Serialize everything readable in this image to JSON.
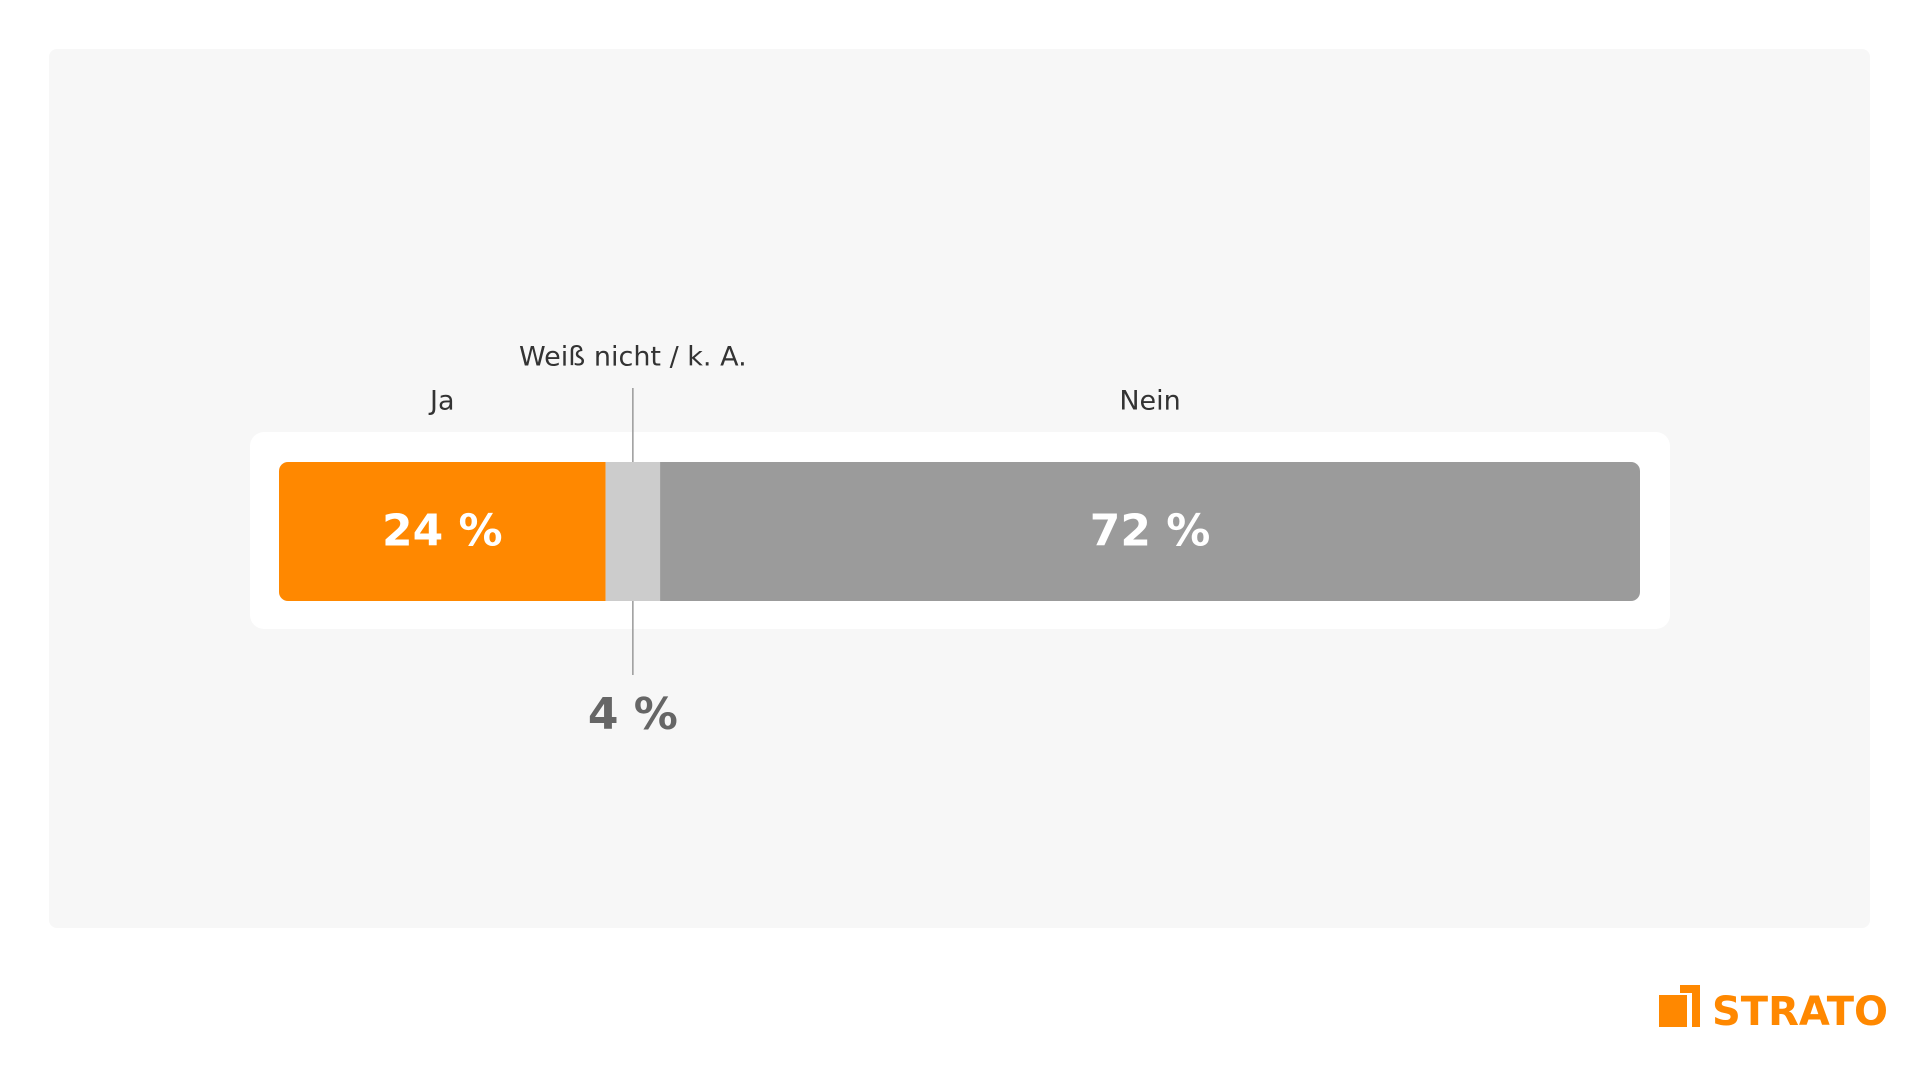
{
  "chart_data": {
    "type": "stacked-bar",
    "series": [
      {
        "name": "Ja",
        "color": "#ff8800",
        "values": [
          24
        ],
        "value_labels": [
          "24 %"
        ]
      },
      {
        "name": "Weiß nicht / k. A.",
        "color": "#cccccc",
        "values": [
          4
        ],
        "value_labels": [
          "4 %"
        ]
      },
      {
        "name": "Nein",
        "color": "#9b9b9b",
        "values": [
          72
        ],
        "value_labels": [
          "72 %"
        ]
      }
    ]
  },
  "logo": "STRATO"
}
